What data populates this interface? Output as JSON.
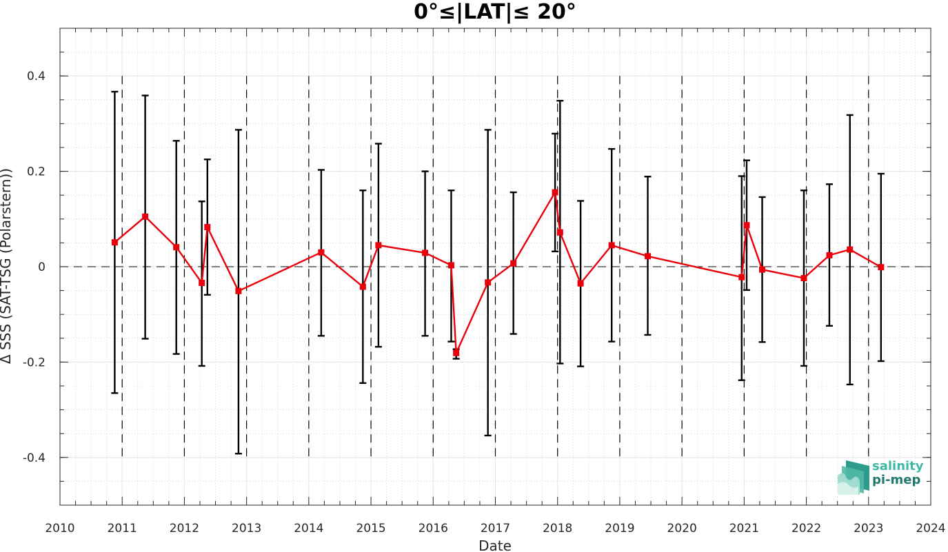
{
  "chart_data": {
    "type": "line",
    "title": "0°≤|LAT|≤ 20°",
    "xlabel": "Date",
    "ylabel": "Δ SSS (SAT-TSG (Polarstern))",
    "xlim": [
      2010,
      2024
    ],
    "ylim": [
      -0.5,
      0.5
    ],
    "x_ticks": [
      "2010",
      "2011",
      "2012",
      "2013",
      "2014",
      "2015",
      "2016",
      "2017",
      "2018",
      "2019",
      "2020",
      "2021",
      "2022",
      "2023",
      "2024"
    ],
    "y_ticks": [
      {
        "value": 0.4,
        "label": "0.4"
      },
      {
        "value": 0.2,
        "label": "0.2"
      },
      {
        "value": 0,
        "label": "0"
      },
      {
        "value": -0.2,
        "label": "-0.2"
      },
      {
        "value": -0.4,
        "label": "-0.4"
      }
    ],
    "grid": true,
    "year_boundaries": [
      2011,
      2012,
      2013,
      2014,
      2015,
      2016,
      2017,
      2018,
      2019,
      2020,
      2021,
      2022,
      2023
    ],
    "zero_line": 0,
    "series": [
      {
        "color": "#e8000b",
        "marker": "square",
        "points": [
          {
            "x": 2010.88,
            "y": 0.051,
            "lo": -0.265,
            "hi": 0.367
          },
          {
            "x": 2011.37,
            "y": 0.105,
            "lo": -0.151,
            "hi": 0.359
          },
          {
            "x": 2011.87,
            "y": 0.041,
            "lo": -0.183,
            "hi": 0.264
          },
          {
            "x": 2012.28,
            "y": -0.034,
            "lo": -0.208,
            "hi": 0.137
          },
          {
            "x": 2012.37,
            "y": 0.083,
            "lo": -0.059,
            "hi": 0.225
          },
          {
            "x": 2012.87,
            "y": -0.051,
            "lo": -0.392,
            "hi": 0.287
          },
          {
            "x": 2014.2,
            "y": 0.03,
            "lo": -0.145,
            "hi": 0.203
          },
          {
            "x": 2014.87,
            "y": -0.042,
            "lo": -0.244,
            "hi": 0.16
          },
          {
            "x": 2015.12,
            "y": 0.045,
            "lo": -0.168,
            "hi": 0.258
          },
          {
            "x": 2015.87,
            "y": 0.029,
            "lo": -0.145,
            "hi": 0.2
          },
          {
            "x": 2016.29,
            "y": 0.003,
            "lo": -0.157,
            "hi": 0.16
          },
          {
            "x": 2016.37,
            "y": -0.181,
            "lo": -0.193,
            "hi": -0.173
          },
          {
            "x": 2016.88,
            "y": -0.033,
            "lo": -0.354,
            "hi": 0.287
          },
          {
            "x": 2017.29,
            "y": 0.007,
            "lo": -0.141,
            "hi": 0.156
          },
          {
            "x": 2017.96,
            "y": 0.156,
            "lo": 0.032,
            "hi": 0.279
          },
          {
            "x": 2018.04,
            "y": 0.072,
            "lo": -0.203,
            "hi": 0.348
          },
          {
            "x": 2018.37,
            "y": -0.035,
            "lo": -0.209,
            "hi": 0.138
          },
          {
            "x": 2018.87,
            "y": 0.045,
            "lo": -0.157,
            "hi": 0.247
          },
          {
            "x": 2019.45,
            "y": 0.022,
            "lo": -0.143,
            "hi": 0.189
          },
          {
            "x": 2020.96,
            "y": -0.022,
            "lo": -0.238,
            "hi": 0.19
          },
          {
            "x": 2021.04,
            "y": 0.087,
            "lo": -0.049,
            "hi": 0.223
          },
          {
            "x": 2021.29,
            "y": -0.006,
            "lo": -0.158,
            "hi": 0.146
          },
          {
            "x": 2021.96,
            "y": -0.024,
            "lo": -0.208,
            "hi": 0.16
          },
          {
            "x": 2022.37,
            "y": 0.024,
            "lo": -0.124,
            "hi": 0.173
          },
          {
            "x": 2022.7,
            "y": 0.036,
            "lo": -0.247,
            "hi": 0.318
          },
          {
            "x": 2023.2,
            "y": -0.001,
            "lo": -0.198,
            "hi": 0.195
          }
        ]
      }
    ]
  },
  "logo": {
    "line1": "salinity",
    "line2": "pi-mep",
    "color1": "#3fb8a6",
    "color2": "#1f7a6e"
  }
}
